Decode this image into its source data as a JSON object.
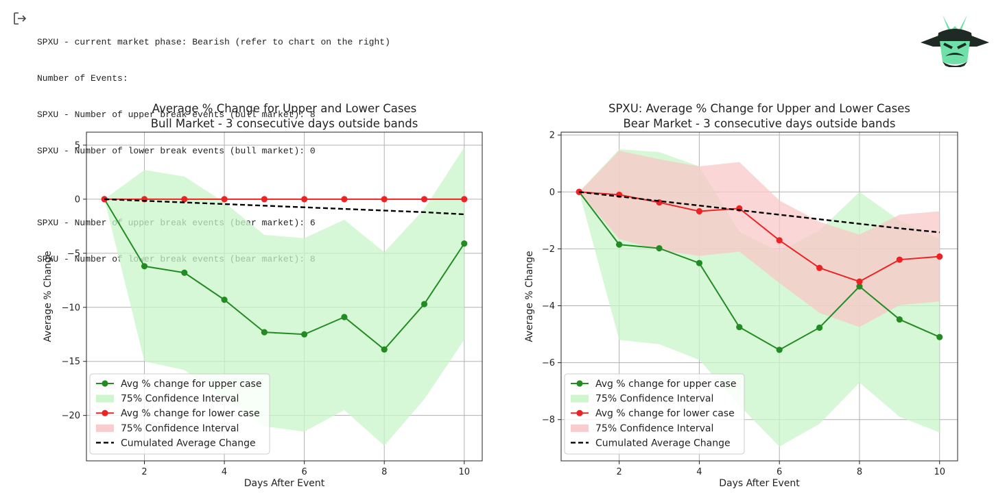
{
  "console": {
    "lines": [
      "SPXU - current market phase: Bearish (refer to chart on the right)",
      "Number of Events:",
      "SPXU - Number of upper break events (bull market): 8",
      "SPXU - Number of lower break events (bull market): 0",
      "",
      "SPXU - Number of upper break events (bear market): 6",
      "SPXU - Number of lower break events (bear market): 8"
    ]
  },
  "icons": {
    "output": "exit-icon",
    "logo": "samurai-helmet-logo"
  },
  "colors": {
    "green": "#228b22",
    "red": "#ee2222",
    "green_band": "#c8f5c8",
    "red_band": "#f8c8c8",
    "dashed": "#000000"
  },
  "chart_data": [
    {
      "type": "line",
      "title": "Average % Change for Upper and Lower Cases",
      "subtitle": "Bull Market - 3 consecutive days outside bands",
      "xlabel": "Days After Event",
      "ylabel": "Average % Change",
      "xlim": [
        0.55,
        10.45
      ],
      "ylim": [
        -24.2,
        6.2
      ],
      "xticks": [
        2,
        4,
        6,
        8,
        10
      ],
      "yticks": [
        5,
        0,
        -5,
        -10,
        -15,
        -20
      ],
      "ytick_labels": [
        "5",
        "0",
        "−5",
        "−10",
        "−15",
        "−20"
      ],
      "grid": true,
      "legend_position": "lower-left",
      "x": [
        1,
        2,
        3,
        4,
        5,
        6,
        7,
        8,
        9,
        10
      ],
      "series": [
        {
          "name": "Avg % change for upper case",
          "color": "#228b22",
          "marker": "circle",
          "values": [
            0,
            -6.2,
            -6.8,
            -9.3,
            -12.3,
            -12.5,
            -10.9,
            -13.9,
            -9.7,
            -4.1
          ]
        },
        {
          "name": "Avg % change for lower case",
          "color": "#ee2222",
          "marker": "circle",
          "values": [
            0,
            0,
            0,
            0,
            0,
            0,
            0,
            0,
            0,
            0
          ]
        },
        {
          "name": "Cumulated Average Change",
          "color": "#000000",
          "dashed": true,
          "values": [
            0,
            -0.15,
            -0.3,
            -0.45,
            -0.6,
            -0.75,
            -0.9,
            -1.05,
            -1.2,
            -1.4
          ]
        }
      ],
      "bands": [
        {
          "name": "75% Confidence Interval",
          "color": "#c8f5c8",
          "opacity": 0.75,
          "lower": [
            0,
            -15,
            -15.8,
            -18.5,
            -21,
            -21.5,
            -19.5,
            -22.8,
            -18.5,
            -13
          ],
          "upper": [
            0,
            2.7,
            2.1,
            -0.3,
            -3.3,
            -3.6,
            -1.9,
            -4.9,
            -0.9,
            4.8
          ]
        },
        {
          "name": "75% Confidence Interval",
          "color": "#f8c8c8",
          "opacity": 0.75,
          "lower": [
            0,
            0,
            0,
            0,
            0,
            0,
            0,
            0,
            0,
            0
          ],
          "upper": [
            0,
            0,
            0,
            0,
            0,
            0,
            0,
            0,
            0,
            0
          ]
        }
      ],
      "legend": [
        {
          "label": "Avg % change for upper case",
          "kind": "line-marker",
          "color": "#228b22"
        },
        {
          "label": "75% Confidence Interval",
          "kind": "patch",
          "color": "#c8f5c8"
        },
        {
          "label": "Avg % change for lower case",
          "kind": "line-marker",
          "color": "#ee2222"
        },
        {
          "label": "75% Confidence Interval",
          "kind": "patch",
          "color": "#f8c8c8"
        },
        {
          "label": "Cumulated Average Change",
          "kind": "dashed",
          "color": "#000000"
        }
      ]
    },
    {
      "type": "line",
      "title": "SPXU: Average % Change for Upper and Lower Cases",
      "subtitle": "Bear Market - 3 consecutive days outside bands",
      "xlabel": "Days After Event",
      "ylabel": "Average % Change",
      "xlim": [
        0.55,
        10.45
      ],
      "ylim": [
        -9.45,
        2.1
      ],
      "xticks": [
        2,
        4,
        6,
        8,
        10
      ],
      "yticks": [
        2,
        0,
        -2,
        -4,
        -6,
        -8
      ],
      "ytick_labels": [
        "2",
        "0",
        "−2",
        "−4",
        "−6",
        "−8"
      ],
      "grid": true,
      "legend_position": "lower-left",
      "x": [
        1,
        2,
        3,
        4,
        5,
        6,
        7,
        8,
        9,
        10
      ],
      "series": [
        {
          "name": "Avg % change for upper case",
          "color": "#228b22",
          "marker": "circle",
          "values": [
            0,
            -1.85,
            -1.98,
            -2.5,
            -4.75,
            -5.55,
            -4.77,
            -3.32,
            -4.48,
            -5.1
          ]
        },
        {
          "name": "Avg % change for lower case",
          "color": "#ee2222",
          "marker": "circle",
          "values": [
            0,
            -0.1,
            -0.37,
            -0.68,
            -0.58,
            -1.7,
            -2.67,
            -3.15,
            -2.38,
            -2.27
          ]
        },
        {
          "name": "Cumulated Average Change",
          "color": "#000000",
          "dashed": true,
          "values": [
            0,
            -0.16,
            -0.32,
            -0.48,
            -0.64,
            -0.8,
            -0.96,
            -1.12,
            -1.28,
            -1.42
          ]
        }
      ],
      "bands": [
        {
          "name": "75% Confidence Interval",
          "color": "#c8f5c8",
          "opacity": 0.75,
          "lower": [
            0,
            -5.2,
            -5.35,
            -5.9,
            -7.5,
            -8.95,
            -8.15,
            -6.7,
            -7.9,
            -8.45
          ],
          "upper": [
            0,
            1.5,
            1.4,
            0.9,
            -1.4,
            -2.1,
            -1.35,
            0,
            -1.0,
            -1.65
          ]
        },
        {
          "name": "75% Confidence Interval",
          "color": "#f8c8c8",
          "opacity": 0.75,
          "lower": [
            0,
            -1.65,
            -2.05,
            -2.25,
            -2.1,
            -3.2,
            -4.25,
            -4.75,
            -3.98,
            -3.85
          ],
          "upper": [
            0,
            1.45,
            1.15,
            0.9,
            1.05,
            -0.3,
            -1.05,
            -1.5,
            -0.8,
            -0.68
          ]
        }
      ],
      "legend": [
        {
          "label": "Avg % change for upper case",
          "kind": "line-marker",
          "color": "#228b22"
        },
        {
          "label": "75% Confidence Interval",
          "kind": "patch",
          "color": "#c8f5c8"
        },
        {
          "label": "Avg % change for lower case",
          "kind": "line-marker",
          "color": "#ee2222"
        },
        {
          "label": "75% Confidence Interval",
          "kind": "patch",
          "color": "#f8c8c8"
        },
        {
          "label": "Cumulated Average Change",
          "kind": "dashed",
          "color": "#000000"
        }
      ]
    }
  ]
}
